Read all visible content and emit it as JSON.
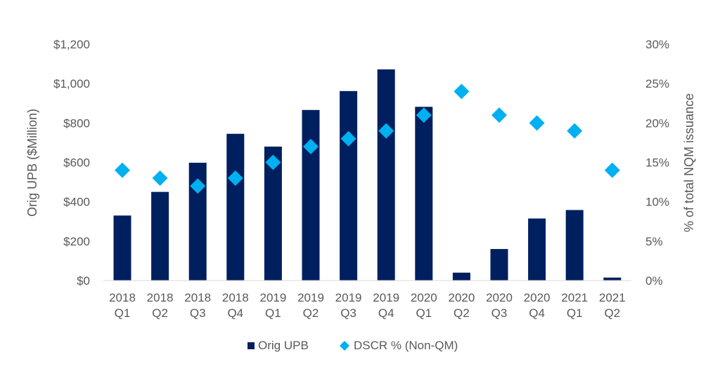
{
  "chart_data": {
    "type": "bar",
    "title": "",
    "categories": [
      [
        "2018",
        "Q1"
      ],
      [
        "2018",
        "Q2"
      ],
      [
        "2018",
        "Q3"
      ],
      [
        "2018",
        "Q4"
      ],
      [
        "2019",
        "Q1"
      ],
      [
        "2019",
        "Q2"
      ],
      [
        "2019",
        "Q3"
      ],
      [
        "2019",
        "Q4"
      ],
      [
        "2020",
        "Q1"
      ],
      [
        "2020",
        "Q2"
      ],
      [
        "2020",
        "Q3"
      ],
      [
        "2020",
        "Q4"
      ],
      [
        "2021",
        "Q1"
      ],
      [
        "2021",
        "Q2"
      ]
    ],
    "series": [
      {
        "name": "Orig UPB",
        "type": "bar",
        "axis": "left",
        "color": "#001F5F",
        "values": [
          330,
          450,
          598,
          745,
          680,
          866,
          962,
          1072,
          882,
          40,
          160,
          315,
          358,
          15
        ]
      },
      {
        "name": "DSCR % (Non-QM)",
        "type": "scatter",
        "marker": "diamond",
        "axis": "right",
        "color": "#00B0F0",
        "values": [
          14,
          13,
          12,
          13,
          15,
          17,
          18,
          19,
          21,
          24,
          21,
          20,
          19,
          14
        ]
      }
    ],
    "ylabel": "Orig UPB ($Million)",
    "ylim": [
      0,
      1200
    ],
    "yticks": [
      "$0",
      "$200",
      "$400",
      "$600",
      "$800",
      "$1,000",
      "$1,200"
    ],
    "y2label": "% of total NQM issuance",
    "y2lim": [
      0,
      30
    ],
    "y2ticks": [
      "0%",
      "5%",
      "10%",
      "15%",
      "20%",
      "25%",
      "30%"
    ],
    "grid": false,
    "legend": "bottom-center"
  }
}
